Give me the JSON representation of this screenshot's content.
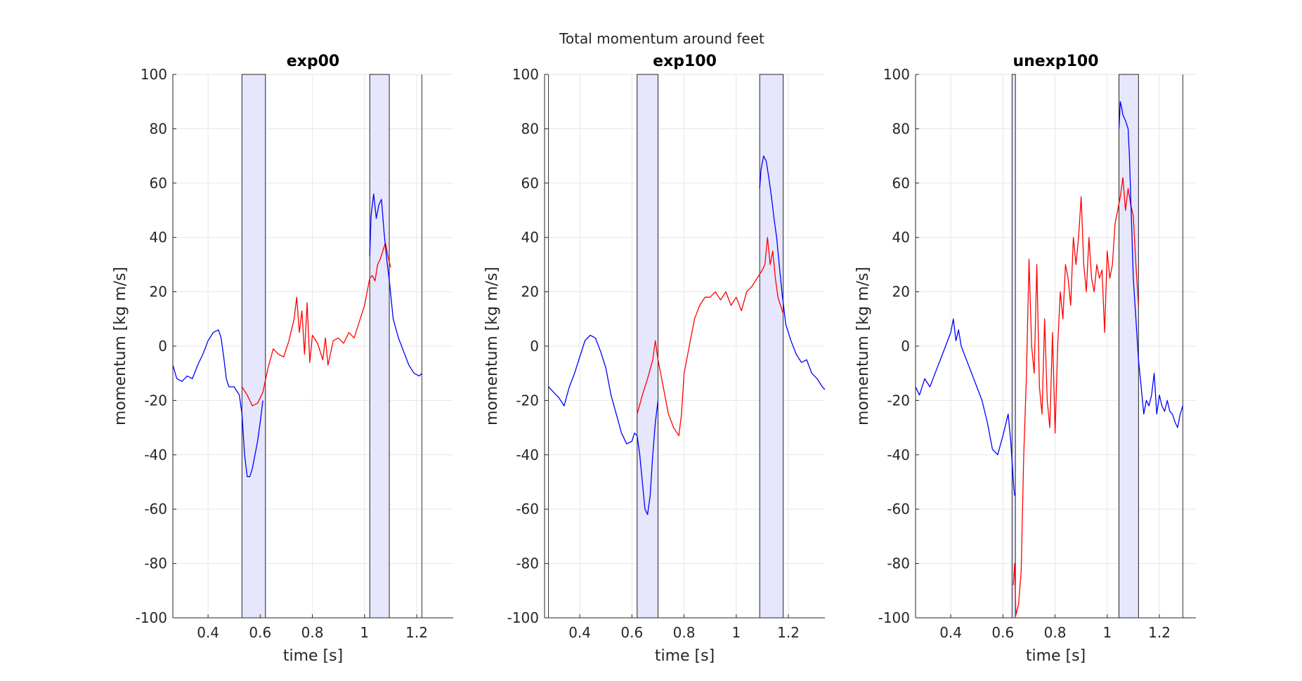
{
  "figure": {
    "suptitle": "Total momentum around feet"
  },
  "colors": {
    "series_blue": "#0000ff",
    "series_red": "#ff0000",
    "shade_fill": "#e6e6fc",
    "grid": "#e6e6e6",
    "axis": "#262626"
  },
  "chart_data": [
    {
      "type": "line",
      "title": "exp00",
      "xlabel": "time [s]",
      "ylabel": "momentum [kg m/s]",
      "xlim": [
        0.265,
        1.34
      ],
      "ylim": [
        -100,
        100
      ],
      "xticks": [
        0.4,
        0.6,
        0.8,
        1,
        1.2
      ],
      "xticklabels": [
        "0.4",
        "0.6",
        "0.8",
        "1",
        "1.2"
      ],
      "yticks": [
        -100,
        -80,
        -60,
        -40,
        -20,
        0,
        20,
        40,
        60,
        80,
        100
      ],
      "yticklabels": [
        "-100",
        "-80",
        "-60",
        "-40",
        "-20",
        "0",
        "20",
        "40",
        "60",
        "80",
        "100"
      ],
      "grid": true,
      "shaded_regions": [
        [
          0.53,
          0.62
        ],
        [
          1.02,
          1.095
        ]
      ],
      "vertical_lines": [
        1.22
      ],
      "series": [
        {
          "color": "blue",
          "x": [
            0.265,
            0.28,
            0.3,
            0.32,
            0.34,
            0.36,
            0.38,
            0.4,
            0.42,
            0.44,
            0.45,
            0.46,
            0.47,
            0.48,
            0.5,
            0.52,
            0.53,
            0.54,
            0.55,
            0.56,
            0.57,
            0.58,
            0.59,
            0.6,
            0.61
          ],
          "y": [
            -7,
            -12,
            -13,
            -11,
            -12,
            -7,
            -3,
            2,
            5,
            6,
            3,
            -4,
            -12,
            -15,
            -15,
            -18,
            -25,
            -40,
            -48,
            -48,
            -45,
            -40,
            -35,
            -28,
            -20
          ]
        },
        {
          "color": "red",
          "x": [
            0.53,
            0.55,
            0.57,
            0.59,
            0.61,
            0.63,
            0.65,
            0.67,
            0.69,
            0.71,
            0.73,
            0.74,
            0.75,
            0.76,
            0.77,
            0.78,
            0.79,
            0.8,
            0.82,
            0.84,
            0.85,
            0.86,
            0.88,
            0.9,
            0.92,
            0.94,
            0.96,
            0.98,
            1.0,
            1.01,
            1.02,
            1.03,
            1.04,
            1.05,
            1.06,
            1.07,
            1.08,
            1.09,
            1.1
          ],
          "y": [
            -15,
            -18,
            -22,
            -21,
            -17,
            -8,
            -1,
            -3,
            -4,
            2,
            10,
            18,
            5,
            13,
            -3,
            16,
            -6,
            4,
            1,
            -5,
            3,
            -7,
            2,
            3,
            1,
            5,
            3,
            9,
            15,
            20,
            25,
            26,
            24,
            30,
            32,
            35,
            38,
            33,
            29
          ]
        },
        {
          "color": "blue",
          "x": [
            1.02,
            1.025,
            1.035,
            1.045,
            1.055,
            1.065,
            1.075,
            1.085,
            1.095,
            1.11,
            1.13,
            1.15,
            1.17,
            1.19,
            1.21,
            1.22
          ],
          "y": [
            33,
            48,
            56,
            47,
            52,
            54,
            42,
            32,
            24,
            10,
            3,
            -2,
            -7,
            -10,
            -11,
            -10
          ]
        }
      ]
    },
    {
      "type": "line",
      "title": "exp100",
      "xlabel": "time [s]",
      "ylabel": "momentum [kg m/s]",
      "xlim": [
        0.265,
        1.34
      ],
      "ylim": [
        -100,
        100
      ],
      "xticks": [
        0.4,
        0.6,
        0.8,
        1,
        1.2
      ],
      "xticklabels": [
        "0.4",
        "0.6",
        "0.8",
        "1",
        "1.2"
      ],
      "yticks": [
        -100,
        -80,
        -60,
        -40,
        -20,
        0,
        20,
        40,
        60,
        80,
        100
      ],
      "yticklabels": [
        "-100",
        "-80",
        "-60",
        "-40",
        "-20",
        "0",
        "20",
        "40",
        "60",
        "80",
        "100"
      ],
      "grid": true,
      "shaded_regions": [
        [
          0.62,
          0.7
        ],
        [
          1.09,
          1.18
        ]
      ],
      "vertical_lines": [
        0.28
      ],
      "series": [
        {
          "color": "blue",
          "x": [
            0.28,
            0.3,
            0.32,
            0.34,
            0.36,
            0.38,
            0.4,
            0.42,
            0.44,
            0.46,
            0.48,
            0.5,
            0.52,
            0.54,
            0.56,
            0.58,
            0.6,
            0.61,
            0.62,
            0.63,
            0.64,
            0.65,
            0.66,
            0.67,
            0.68,
            0.69,
            0.7
          ],
          "y": [
            -15,
            -17,
            -19,
            -22,
            -15,
            -10,
            -4,
            2,
            4,
            3,
            -2,
            -8,
            -18,
            -25,
            -32,
            -36,
            -35,
            -32,
            -33,
            -40,
            -50,
            -60,
            -62,
            -55,
            -40,
            -28,
            -20
          ]
        },
        {
          "color": "red",
          "x": [
            0.62,
            0.64,
            0.66,
            0.68,
            0.69,
            0.7,
            0.72,
            0.74,
            0.76,
            0.78,
            0.79,
            0.8,
            0.82,
            0.84,
            0.86,
            0.88,
            0.9,
            0.92,
            0.94,
            0.96,
            0.98,
            1.0,
            1.02,
            1.04,
            1.06,
            1.08,
            1.1,
            1.11,
            1.12,
            1.13,
            1.14,
            1.15,
            1.16,
            1.17,
            1.18
          ],
          "y": [
            -25,
            -18,
            -12,
            -5,
            2,
            -5,
            -15,
            -25,
            -30,
            -33,
            -25,
            -10,
            0,
            10,
            15,
            18,
            18,
            20,
            17,
            20,
            15,
            18,
            13,
            20,
            22,
            25,
            28,
            30,
            40,
            30,
            35,
            25,
            18,
            15,
            12
          ]
        },
        {
          "color": "blue",
          "x": [
            1.09,
            1.095,
            1.105,
            1.115,
            1.125,
            1.135,
            1.145,
            1.155,
            1.165,
            1.175,
            1.19,
            1.21,
            1.23,
            1.25,
            1.27,
            1.29,
            1.31,
            1.33,
            1.34
          ],
          "y": [
            58,
            65,
            70,
            68,
            62,
            55,
            47,
            40,
            30,
            20,
            8,
            2,
            -3,
            -6,
            -5,
            -10,
            -12,
            -15,
            -16
          ]
        }
      ]
    },
    {
      "type": "line",
      "title": "unexp100",
      "xlabel": "time [s]",
      "ylabel": "momentum [kg m/s]",
      "xlim": [
        0.265,
        1.34
      ],
      "ylim": [
        -100,
        100
      ],
      "xticks": [
        0.4,
        0.6,
        0.8,
        1,
        1.2
      ],
      "xticklabels": [
        "0.4",
        "0.6",
        "0.8",
        "1",
        "1.2"
      ],
      "yticks": [
        -100,
        -80,
        -60,
        -40,
        -20,
        0,
        20,
        40,
        60,
        80,
        100
      ],
      "yticklabels": [
        "-100",
        "-80",
        "-60",
        "-40",
        "-20",
        "0",
        "20",
        "40",
        "60",
        "80",
        "100"
      ],
      "grid": true,
      "shaded_regions": [
        [
          0.635,
          0.648
        ],
        [
          1.045,
          1.12
        ]
      ],
      "vertical_lines": [
        1.29
      ],
      "series": [
        {
          "color": "blue",
          "x": [
            0.265,
            0.28,
            0.3,
            0.32,
            0.34,
            0.36,
            0.38,
            0.4,
            0.41,
            0.42,
            0.43,
            0.44,
            0.46,
            0.48,
            0.5,
            0.52,
            0.54,
            0.56,
            0.58,
            0.6,
            0.62,
            0.63,
            0.64,
            0.645
          ],
          "y": [
            -15,
            -18,
            -12,
            -15,
            -10,
            -5,
            0,
            5,
            10,
            2,
            6,
            0,
            -5,
            -10,
            -15,
            -20,
            -28,
            -38,
            -40,
            -33,
            -25,
            -35,
            -50,
            -55
          ]
        },
        {
          "color": "red",
          "x": [
            0.64,
            0.645,
            0.65,
            0.66,
            0.67,
            0.68,
            0.69,
            0.7,
            0.71,
            0.72,
            0.73,
            0.74,
            0.75,
            0.76,
            0.77,
            0.78,
            0.79,
            0.8,
            0.81,
            0.82,
            0.83,
            0.84,
            0.85,
            0.86,
            0.87,
            0.88,
            0.89,
            0.9,
            0.91,
            0.92,
            0.93,
            0.94,
            0.95,
            0.96,
            0.97,
            0.98,
            0.99,
            1.0,
            1.01,
            1.02,
            1.03,
            1.04,
            1.05,
            1.06,
            1.07,
            1.08,
            1.09,
            1.1,
            1.11,
            1.12
          ],
          "y": [
            -88,
            -80,
            -99,
            -95,
            -83,
            -40,
            -12,
            32,
            0,
            -10,
            30,
            -15,
            -25,
            10,
            -20,
            -30,
            5,
            -32,
            0,
            20,
            10,
            30,
            25,
            15,
            40,
            30,
            40,
            55,
            30,
            20,
            40,
            25,
            20,
            30,
            25,
            28,
            5,
            35,
            25,
            30,
            45,
            50,
            55,
            62,
            50,
            58,
            52,
            48,
            30,
            15
          ]
        },
        {
          "color": "blue",
          "x": [
            1.045,
            1.05,
            1.055,
            1.06,
            1.07,
            1.08,
            1.085,
            1.09,
            1.095,
            1.1,
            1.11,
            1.12,
            1.13,
            1.14,
            1.15,
            1.16,
            1.17,
            1.18,
            1.19,
            1.2,
            1.21,
            1.22,
            1.23,
            1.24,
            1.25,
            1.26,
            1.27,
            1.28,
            1.29
          ],
          "y": [
            80,
            90,
            88,
            85,
            83,
            80,
            70,
            55,
            40,
            25,
            10,
            -5,
            -15,
            -25,
            -20,
            -22,
            -18,
            -10,
            -25,
            -18,
            -22,
            -24,
            -20,
            -24,
            -25,
            -28,
            -30,
            -25,
            -22
          ]
        }
      ]
    }
  ]
}
